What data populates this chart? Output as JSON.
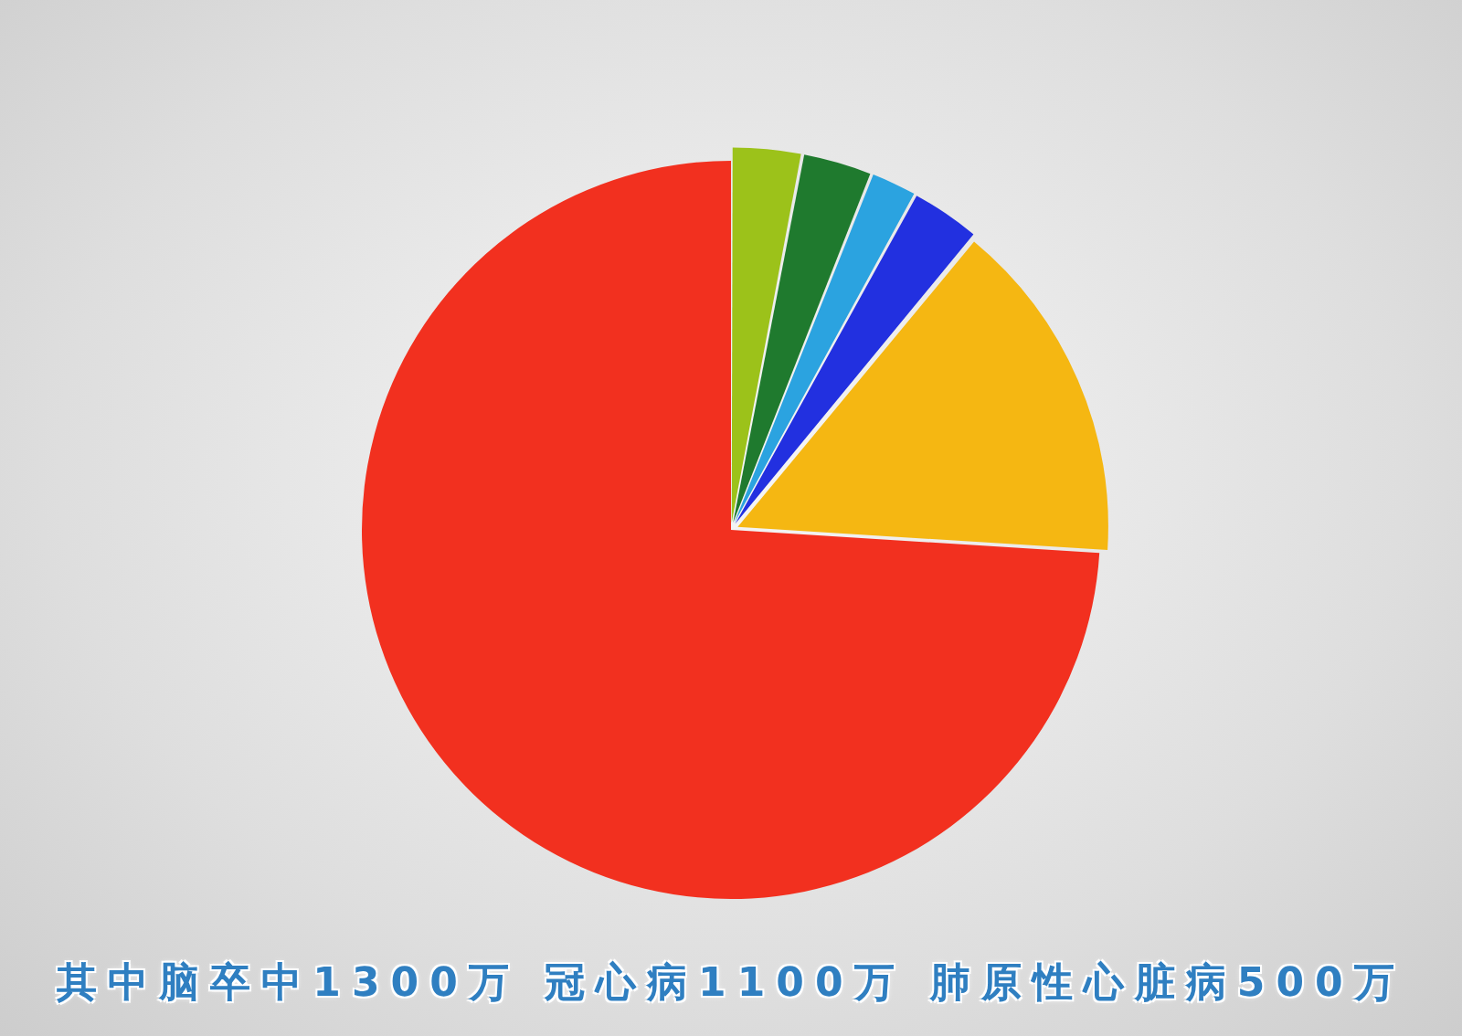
{
  "chart_data": {
    "type": "pie",
    "categories": [
      null,
      null,
      null,
      null,
      null,
      null
    ],
    "values": [
      3,
      3,
      2,
      3,
      15,
      74
    ],
    "colors": [
      "#9cc21a",
      "#1f7a2e",
      "#2ba3e0",
      "#2230e0",
      "#f5b712",
      "#f2301f"
    ],
    "annotations": [
      "其中脑卒中1300万 冠心病1100万 肺原性心脏病500万"
    ]
  }
}
